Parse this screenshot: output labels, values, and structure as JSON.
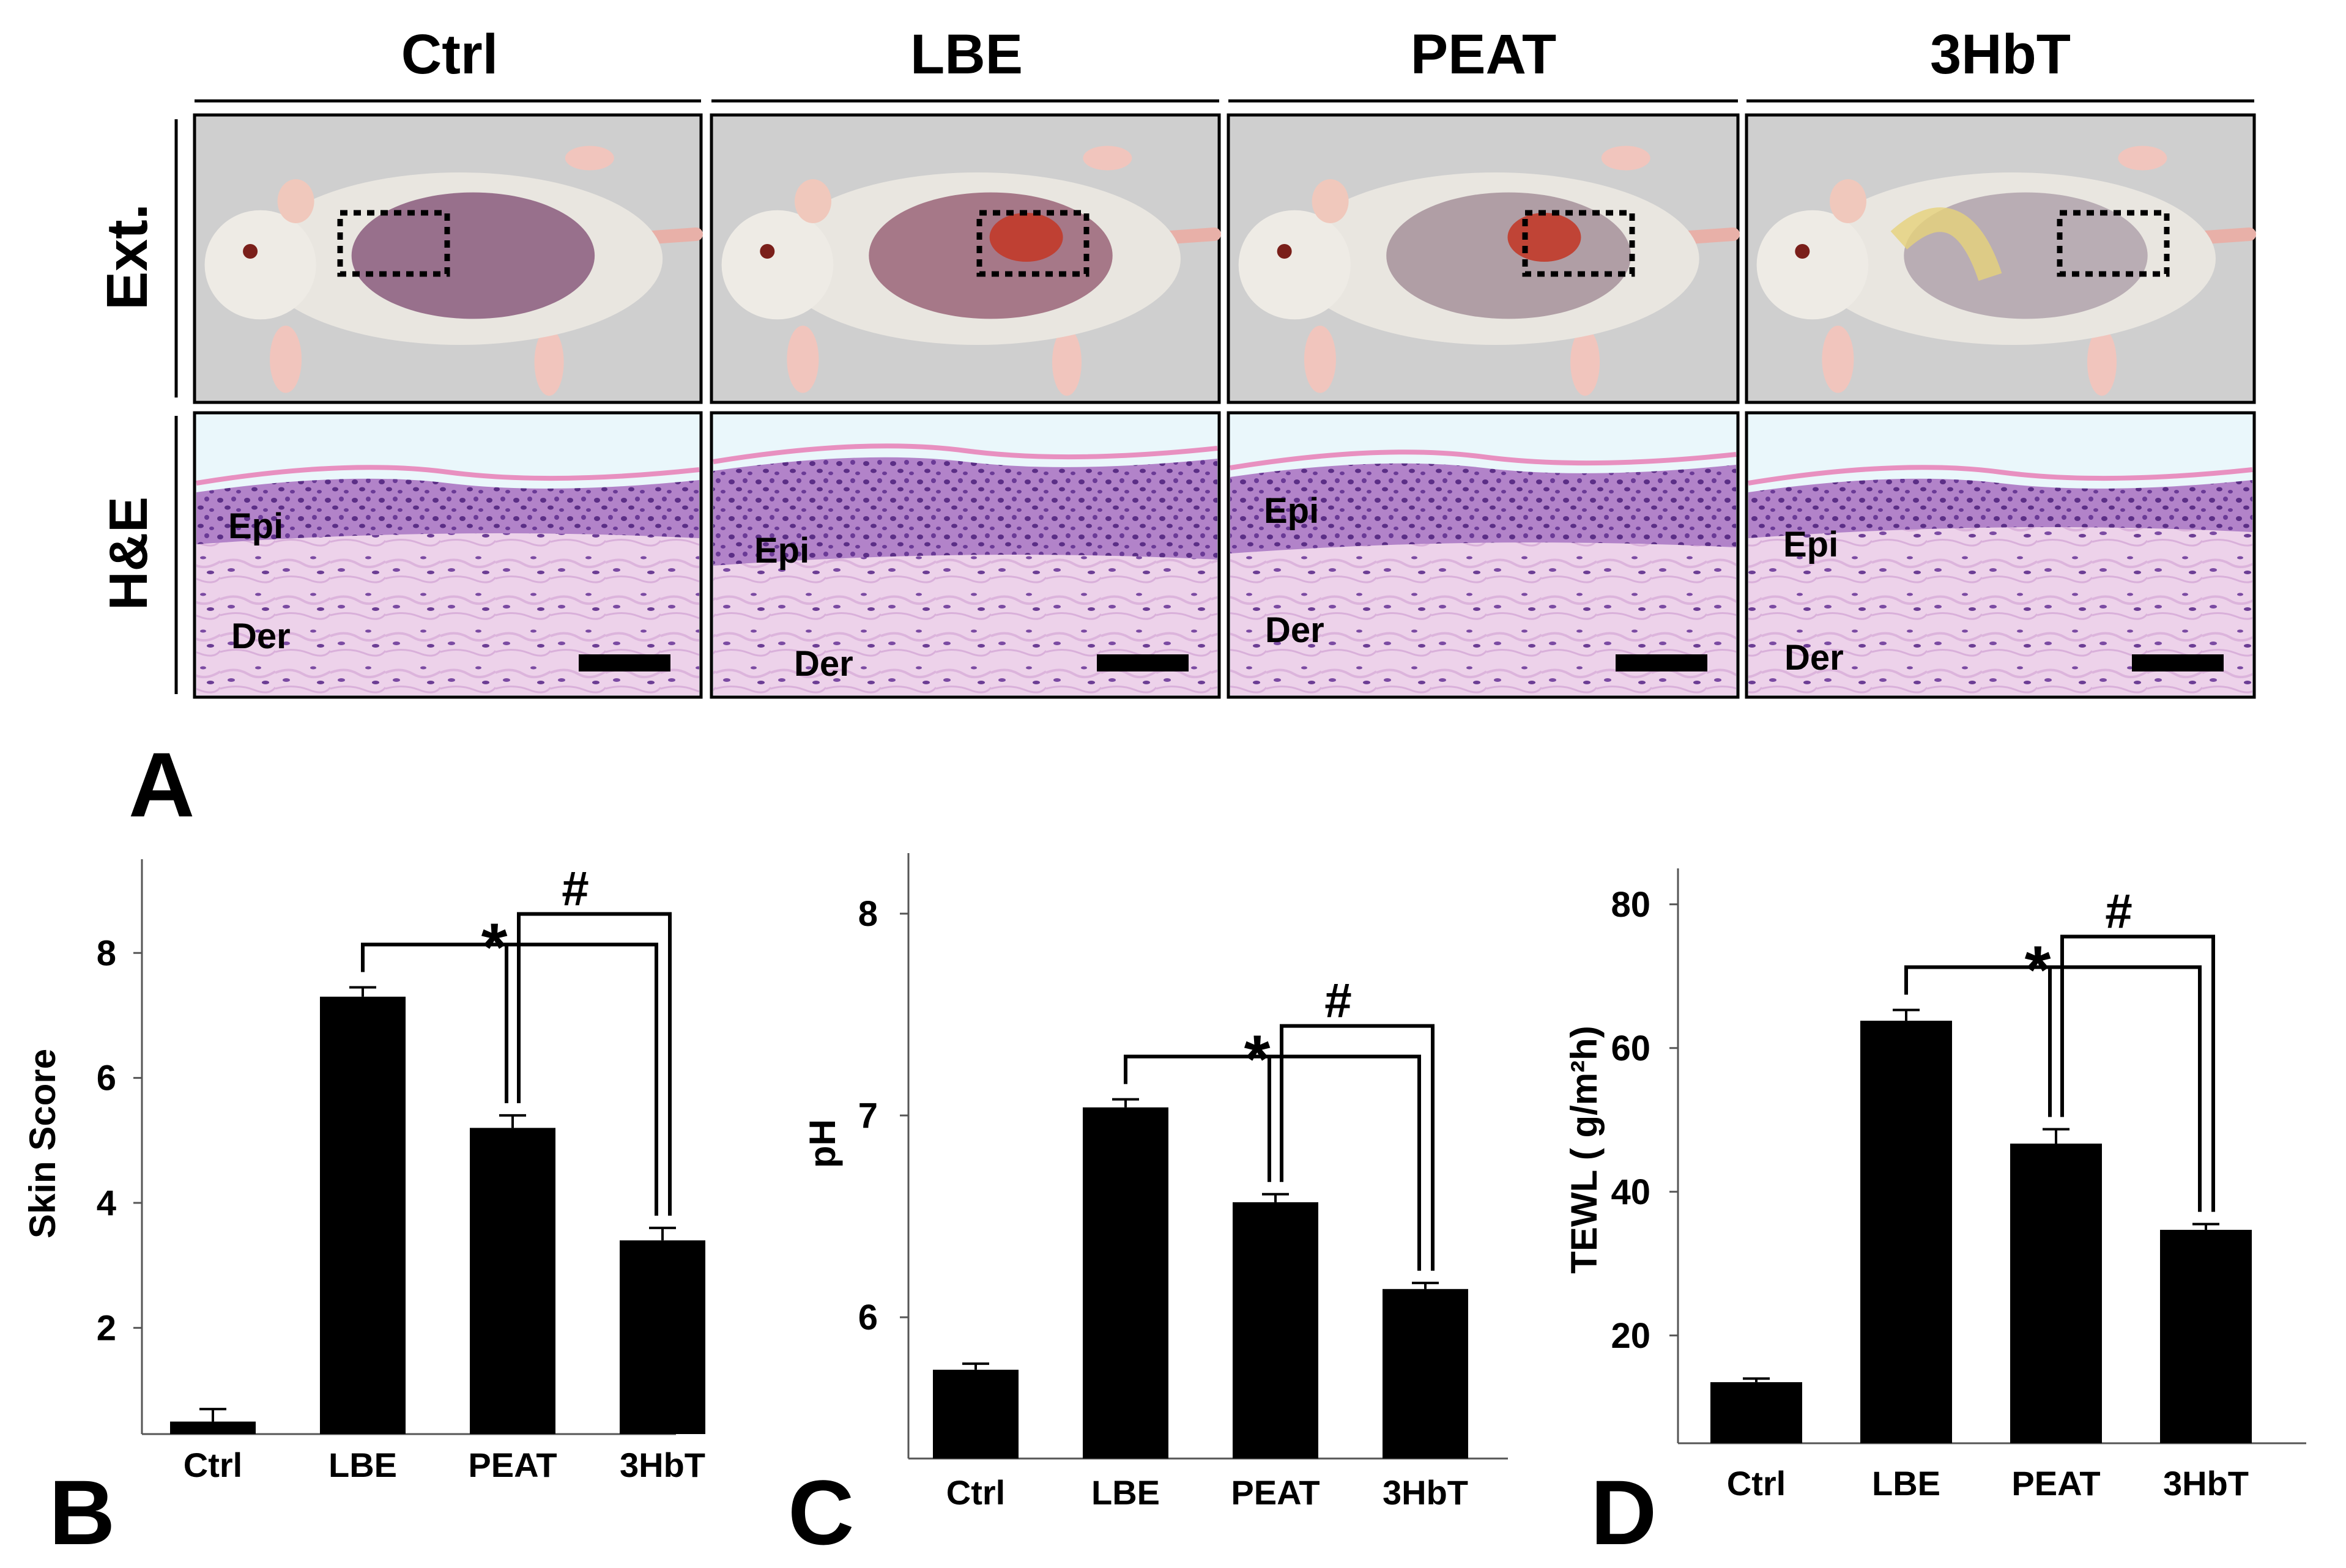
{
  "panel_a": {
    "letter": "A",
    "columns": [
      "Ctrl",
      "LBE",
      "PEAT",
      "3HbT"
    ],
    "row_labels": [
      "Ext.",
      "H&E"
    ],
    "tissue_labels": {
      "epidermis": "Epi",
      "dermis": "Der"
    },
    "colors": {
      "fur": "#e9e6e0",
      "lesion": "#8a5a78",
      "crust": "#c23a2a",
      "hne_pink": "#e6bdda",
      "hne_purple": "#8a4fae",
      "bg_photo": "#cfcfcf",
      "bg_stain": "#eaf7fb"
    }
  },
  "chart_data": [
    {
      "type": "bar",
      "panel": "B",
      "categories": [
        "Ctrl",
        "LBE",
        "PEAT",
        "3HbT"
      ],
      "values": [
        0.5,
        7.3,
        5.2,
        3.4
      ],
      "errors": [
        0.2,
        0.15,
        0.2,
        0.2
      ],
      "ylabel": "Skin Score",
      "xlabel": "",
      "ylim": [
        0.3,
        9.5
      ],
      "yticks": [
        2,
        4,
        6,
        8
      ],
      "bar_color": "#000000",
      "significance": [
        {
          "symbol": "*",
          "from": "LBE",
          "to": [
            "PEAT",
            "3HbT"
          ]
        },
        {
          "symbol": "#",
          "from": "PEAT",
          "to": [
            "3HbT"
          ]
        }
      ]
    },
    {
      "type": "bar",
      "panel": "C",
      "categories": [
        "Ctrl",
        "LBE",
        "PEAT",
        "3HbT"
      ],
      "values": [
        5.74,
        7.04,
        6.57,
        6.14
      ],
      "errors": [
        0.03,
        0.04,
        0.04,
        0.03
      ],
      "ylabel": "pH",
      "xlabel": "",
      "ylim": [
        5.3,
        8.3
      ],
      "yticks": [
        6,
        7,
        8
      ],
      "bar_color": "#000000",
      "significance": [
        {
          "symbol": "*",
          "from": "LBE",
          "to": [
            "PEAT",
            "3HbT"
          ]
        },
        {
          "symbol": "#",
          "from": "PEAT",
          "to": [
            "3HbT"
          ]
        }
      ]
    },
    {
      "type": "bar",
      "panel": "D",
      "categories": [
        "Ctrl",
        "LBE",
        "PEAT",
        "3HbT"
      ],
      "values": [
        13.5,
        63.8,
        46.7,
        34.7
      ],
      "errors": [
        0.5,
        1.5,
        2.0,
        0.8
      ],
      "ylabel": "TEWL ( g/m²h)",
      "xlabel": "",
      "ylim": [
        5,
        85
      ],
      "yticks": [
        20,
        40,
        60,
        80
      ],
      "bar_color": "#000000",
      "significance": [
        {
          "symbol": "*",
          "from": "LBE",
          "to": [
            "PEAT",
            "3HbT"
          ]
        },
        {
          "symbol": "#",
          "from": "PEAT",
          "to": [
            "3HbT"
          ]
        }
      ]
    }
  ]
}
